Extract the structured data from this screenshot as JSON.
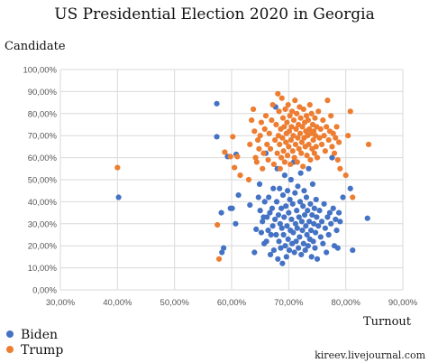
{
  "chart_data": {
    "type": "scatter",
    "title": "US Presidential Election 2020 in Georgia",
    "ylabel": "Candidate",
    "xlabel": "Turnout",
    "credit": "kireev.livejournal.com",
    "xlim": [
      0.3,
      0.9
    ],
    "ylim": [
      0.0,
      1.0
    ],
    "x_ticks": [
      0.3,
      0.4,
      0.5,
      0.6,
      0.7,
      0.8,
      0.9
    ],
    "y_ticks": [
      0.0,
      0.1,
      0.2,
      0.3,
      0.4,
      0.5,
      0.6,
      0.7,
      0.8,
      0.9,
      1.0
    ],
    "x_tick_labels": [
      "30,00%",
      "40,00%",
      "50,00%",
      "60,00%",
      "70,00%",
      "80,00%",
      "90,00%"
    ],
    "y_tick_labels": [
      "0,00%",
      "10,00%",
      "20,00%",
      "30,00%",
      "40,00%",
      "50,00%",
      "60,00%",
      "70,00%",
      "80,00%",
      "90,00%",
      "100,00%"
    ],
    "grid": true,
    "legend_position": "bottom-left",
    "series": [
      {
        "name": "Biden",
        "color": "#4472C4",
        "points": [
          [
            0.402,
            0.42
          ],
          [
            0.574,
            0.845
          ],
          [
            0.574,
            0.695
          ],
          [
            0.593,
            0.605
          ],
          [
            0.608,
            0.615
          ],
          [
            0.598,
            0.37
          ],
          [
            0.601,
            0.37
          ],
          [
            0.582,
            0.35
          ],
          [
            0.607,
            0.3
          ],
          [
            0.612,
            0.43
          ],
          [
            0.586,
            0.19
          ],
          [
            0.583,
            0.17
          ],
          [
            0.632,
            0.385
          ],
          [
            0.64,
            0.17
          ],
          [
            0.643,
            0.275
          ],
          [
            0.647,
            0.42
          ],
          [
            0.649,
            0.48
          ],
          [
            0.65,
            0.36
          ],
          [
            0.652,
            0.26
          ],
          [
            0.654,
            0.31
          ],
          [
            0.656,
            0.33
          ],
          [
            0.657,
            0.21
          ],
          [
            0.658,
            0.4
          ],
          [
            0.66,
            0.62
          ],
          [
            0.661,
            0.22
          ],
          [
            0.662,
            0.33
          ],
          [
            0.664,
            0.27
          ],
          [
            0.665,
            0.42
          ],
          [
            0.667,
            0.35
          ],
          [
            0.668,
            0.16
          ],
          [
            0.669,
            0.25
          ],
          [
            0.671,
            0.37
          ],
          [
            0.672,
            0.29
          ],
          [
            0.673,
            0.46
          ],
          [
            0.674,
            0.18
          ],
          [
            0.676,
            0.32
          ],
          [
            0.677,
            0.83
          ],
          [
            0.678,
            0.25
          ],
          [
            0.679,
            0.4
          ],
          [
            0.68,
            0.55
          ],
          [
            0.681,
            0.14
          ],
          [
            0.682,
            0.34
          ],
          [
            0.683,
            0.22
          ],
          [
            0.684,
            0.46
          ],
          [
            0.685,
            0.3
          ],
          [
            0.686,
            0.19
          ],
          [
            0.687,
            0.37
          ],
          [
            0.688,
            0.28
          ],
          [
            0.689,
            0.12
          ],
          [
            0.69,
            0.43
          ],
          [
            0.691,
            0.25
          ],
          [
            0.692,
            0.33
          ],
          [
            0.693,
            0.52
          ],
          [
            0.694,
            0.2
          ],
          [
            0.695,
            0.38
          ],
          [
            0.696,
            0.15
          ],
          [
            0.697,
            0.29
          ],
          [
            0.698,
            0.45
          ],
          [
            0.699,
            0.23
          ],
          [
            0.7,
            0.35
          ],
          [
            0.701,
            0.18
          ],
          [
            0.702,
            0.41
          ],
          [
            0.703,
            0.27
          ],
          [
            0.704,
            0.5
          ],
          [
            0.705,
            0.32
          ],
          [
            0.706,
            0.21
          ],
          [
            0.707,
            0.39
          ],
          [
            0.708,
            0.26
          ],
          [
            0.709,
            0.58
          ],
          [
            0.71,
            0.17
          ],
          [
            0.711,
            0.44
          ],
          [
            0.712,
            0.3
          ],
          [
            0.713,
            0.22
          ],
          [
            0.714,
            0.36
          ],
          [
            0.715,
            0.28
          ],
          [
            0.716,
            0.47
          ],
          [
            0.717,
            0.19
          ],
          [
            0.718,
            0.33
          ],
          [
            0.719,
            0.24
          ],
          [
            0.72,
            0.4
          ],
          [
            0.721,
            0.53
          ],
          [
            0.722,
            0.16
          ],
          [
            0.723,
            0.31
          ],
          [
            0.724,
            0.27
          ],
          [
            0.725,
            0.38
          ],
          [
            0.726,
            0.21
          ],
          [
            0.727,
            0.45
          ],
          [
            0.728,
            0.34
          ],
          [
            0.729,
            0.18
          ],
          [
            0.73,
            0.29
          ],
          [
            0.731,
            0.42
          ],
          [
            0.732,
            0.25
          ],
          [
            0.733,
            0.36
          ],
          [
            0.734,
            0.2
          ],
          [
            0.735,
            0.55
          ],
          [
            0.736,
            0.31
          ],
          [
            0.737,
            0.23
          ],
          [
            0.738,
            0.39
          ],
          [
            0.739,
            0.27
          ],
          [
            0.74,
            0.15
          ],
          [
            0.741,
            0.34
          ],
          [
            0.742,
            0.48
          ],
          [
            0.743,
            0.22
          ],
          [
            0.744,
            0.3
          ],
          [
            0.745,
            0.37
          ],
          [
            0.746,
            0.19
          ],
          [
            0.747,
            0.26
          ],
          [
            0.748,
            0.41
          ],
          [
            0.749,
            0.33
          ],
          [
            0.75,
            0.14
          ],
          [
            0.752,
            0.29
          ],
          [
            0.754,
            0.36
          ],
          [
            0.756,
            0.24
          ],
          [
            0.758,
            0.31
          ],
          [
            0.76,
            0.21
          ],
          [
            0.762,
            0.39
          ],
          [
            0.764,
            0.28
          ],
          [
            0.766,
            0.17
          ],
          [
            0.768,
            0.33
          ],
          [
            0.77,
            0.25
          ],
          [
            0.772,
            0.35
          ],
          [
            0.774,
            0.3
          ],
          [
            0.776,
            0.6
          ],
          [
            0.778,
            0.37
          ],
          [
            0.78,
            0.2
          ],
          [
            0.782,
            0.32
          ],
          [
            0.784,
            0.27
          ],
          [
            0.786,
            0.19
          ],
          [
            0.788,
            0.35
          ],
          [
            0.79,
            0.31
          ],
          [
            0.795,
            0.42
          ],
          [
            0.808,
            0.46
          ],
          [
            0.812,
            0.18
          ],
          [
            0.838,
            0.325
          ]
        ]
      },
      {
        "name": "Trump",
        "color": "#ED7D31",
        "points": [
          [
            0.4,
            0.555
          ],
          [
            0.575,
            0.295
          ],
          [
            0.578,
            0.14
          ],
          [
            0.588,
            0.625
          ],
          [
            0.598,
            0.605
          ],
          [
            0.602,
            0.695
          ],
          [
            0.605,
            0.555
          ],
          [
            0.61,
            0.605
          ],
          [
            0.615,
            0.52
          ],
          [
            0.63,
            0.5
          ],
          [
            0.632,
            0.66
          ],
          [
            0.635,
            0.77
          ],
          [
            0.638,
            0.82
          ],
          [
            0.64,
            0.72
          ],
          [
            0.642,
            0.6
          ],
          [
            0.644,
            0.58
          ],
          [
            0.646,
            0.68
          ],
          [
            0.648,
            0.64
          ],
          [
            0.65,
            0.7
          ],
          [
            0.652,
            0.76
          ],
          [
            0.654,
            0.55
          ],
          [
            0.656,
            0.62
          ],
          [
            0.658,
            0.73
          ],
          [
            0.66,
            0.79
          ],
          [
            0.662,
            0.66
          ],
          [
            0.664,
            0.59
          ],
          [
            0.666,
            0.71
          ],
          [
            0.668,
            0.64
          ],
          [
            0.67,
            0.77
          ],
          [
            0.672,
            0.84
          ],
          [
            0.674,
            0.57
          ],
          [
            0.676,
            0.68
          ],
          [
            0.678,
            0.75
          ],
          [
            0.68,
            0.62
          ],
          [
            0.681,
            0.89
          ],
          [
            0.682,
            0.7
          ],
          [
            0.683,
            0.81
          ],
          [
            0.684,
            0.66
          ],
          [
            0.685,
            0.55
          ],
          [
            0.686,
            0.73
          ],
          [
            0.687,
            0.6
          ],
          [
            0.688,
            0.87
          ],
          [
            0.689,
            0.69
          ],
          [
            0.69,
            0.78
          ],
          [
            0.691,
            0.63
          ],
          [
            0.692,
            0.74
          ],
          [
            0.693,
            0.58
          ],
          [
            0.694,
            0.82
          ],
          [
            0.695,
            0.67
          ],
          [
            0.696,
            0.71
          ],
          [
            0.697,
            0.76
          ],
          [
            0.698,
            0.61
          ],
          [
            0.699,
            0.84
          ],
          [
            0.7,
            0.65
          ],
          [
            0.701,
            0.72
          ],
          [
            0.702,
            0.79
          ],
          [
            0.703,
            0.57
          ],
          [
            0.704,
            0.68
          ],
          [
            0.705,
            0.74
          ],
          [
            0.706,
            0.81
          ],
          [
            0.707,
            0.63
          ],
          [
            0.708,
            0.7
          ],
          [
            0.709,
            0.77
          ],
          [
            0.71,
            0.6
          ],
          [
            0.711,
            0.86
          ],
          [
            0.712,
            0.66
          ],
          [
            0.713,
            0.73
          ],
          [
            0.714,
            0.8
          ],
          [
            0.715,
            0.58
          ],
          [
            0.716,
            0.69
          ],
          [
            0.717,
            0.75
          ],
          [
            0.718,
            0.64
          ],
          [
            0.719,
            0.83
          ],
          [
            0.72,
            0.71
          ],
          [
            0.721,
            0.78
          ],
          [
            0.722,
            0.62
          ],
          [
            0.723,
            0.67
          ],
          [
            0.724,
            0.74
          ],
          [
            0.725,
            0.56
          ],
          [
            0.726,
            0.82
          ],
          [
            0.727,
            0.69
          ],
          [
            0.728,
            0.76
          ],
          [
            0.729,
            0.65
          ],
          [
            0.73,
            0.72
          ],
          [
            0.731,
            0.79
          ],
          [
            0.732,
            0.61
          ],
          [
            0.733,
            0.7
          ],
          [
            0.734,
            0.77
          ],
          [
            0.735,
            0.66
          ],
          [
            0.736,
            0.73
          ],
          [
            0.737,
            0.84
          ],
          [
            0.738,
            0.59
          ],
          [
            0.739,
            0.71
          ],
          [
            0.74,
            0.8
          ],
          [
            0.741,
            0.64
          ],
          [
            0.742,
            0.75
          ],
          [
            0.743,
            0.68
          ],
          [
            0.744,
            0.72
          ],
          [
            0.745,
            0.62
          ],
          [
            0.746,
            0.78
          ],
          [
            0.747,
            0.7
          ],
          [
            0.748,
            0.65
          ],
          [
            0.749,
            0.74
          ],
          [
            0.75,
            0.6
          ],
          [
            0.752,
            0.81
          ],
          [
            0.754,
            0.69
          ],
          [
            0.756,
            0.73
          ],
          [
            0.758,
            0.66
          ],
          [
            0.76,
            0.77
          ],
          [
            0.762,
            0.7
          ],
          [
            0.764,
            0.63
          ],
          [
            0.766,
            0.74
          ],
          [
            0.768,
            0.86
          ],
          [
            0.77,
            0.68
          ],
          [
            0.772,
            0.72
          ],
          [
            0.774,
            0.79
          ],
          [
            0.776,
            0.65
          ],
          [
            0.778,
            0.71
          ],
          [
            0.78,
            0.62
          ],
          [
            0.782,
            0.69
          ],
          [
            0.784,
            0.74
          ],
          [
            0.786,
            0.59
          ],
          [
            0.788,
            0.67
          ],
          [
            0.79,
            0.55
          ],
          [
            0.8,
            0.52
          ],
          [
            0.804,
            0.7
          ],
          [
            0.808,
            0.81
          ],
          [
            0.812,
            0.42
          ],
          [
            0.84,
            0.66
          ]
        ]
      }
    ]
  }
}
